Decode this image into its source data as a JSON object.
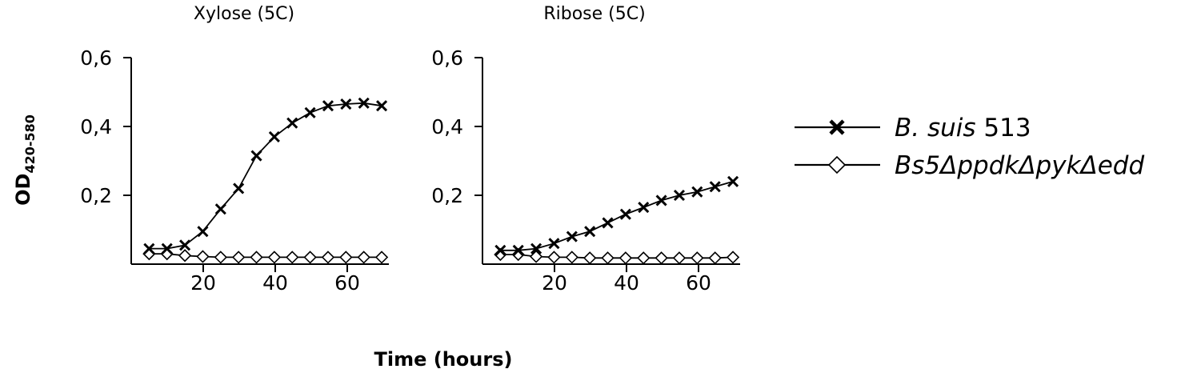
{
  "chart_data": [
    {
      "type": "line",
      "title": "Xylose (5C)",
      "xlim": [
        0,
        72
      ],
      "ylim": [
        0,
        0.6
      ],
      "xticks": [
        "20",
        "40",
        "60"
      ],
      "yticks": [
        "0,2",
        "0,4",
        "0,6"
      ],
      "series": [
        {
          "name": "B. suis 513",
          "marker": "x",
          "x": [
            5,
            10,
            15,
            20,
            25,
            30,
            35,
            40,
            45,
            50,
            55,
            60,
            65,
            70
          ],
          "y": [
            0.045,
            0.045,
            0.055,
            0.095,
            0.16,
            0.22,
            0.315,
            0.37,
            0.41,
            0.44,
            0.46,
            0.465,
            0.468,
            0.46
          ]
        },
        {
          "name": "Bs5ΔppdkΔpykΔedd",
          "marker": "diamond",
          "x": [
            5,
            10,
            15,
            20,
            25,
            30,
            35,
            40,
            45,
            50,
            55,
            60,
            65,
            70
          ],
          "y": [
            0.03,
            0.03,
            0.025,
            0.022,
            0.02,
            0.02,
            0.02,
            0.02,
            0.02,
            0.02,
            0.02,
            0.02,
            0.02,
            0.02
          ]
        }
      ]
    },
    {
      "type": "line",
      "title": "Ribose (5C)",
      "xlim": [
        0,
        72
      ],
      "ylim": [
        0,
        0.6
      ],
      "xticks": [
        "20",
        "40",
        "60"
      ],
      "yticks": [
        "0,2",
        "0,4",
        "0,6"
      ],
      "series": [
        {
          "name": "B. suis 513",
          "marker": "x",
          "x": [
            5,
            10,
            15,
            20,
            25,
            30,
            35,
            40,
            45,
            50,
            55,
            60,
            65,
            70
          ],
          "y": [
            0.04,
            0.04,
            0.045,
            0.06,
            0.08,
            0.095,
            0.12,
            0.145,
            0.165,
            0.185,
            0.2,
            0.21,
            0.225,
            0.24
          ]
        },
        {
          "name": "Bs5ΔppdkΔpykΔedd",
          "marker": "diamond",
          "x": [
            5,
            10,
            15,
            20,
            25,
            30,
            35,
            40,
            45,
            50,
            55,
            60,
            65,
            70
          ],
          "y": [
            0.028,
            0.028,
            0.022,
            0.02,
            0.02,
            0.018,
            0.018,
            0.018,
            0.018,
            0.018,
            0.018,
            0.018,
            0.018,
            0.02
          ]
        }
      ]
    }
  ],
  "shared": {
    "ylabel_main": "OD",
    "ylabel_sub": "420-580",
    "xlabel": "Time (hours)"
  },
  "legend": {
    "placement": "right",
    "entries": [
      {
        "marker": "x",
        "italic_part": "B. suis",
        "plain_part": " 513"
      },
      {
        "marker": "diamond",
        "italic_part": "Bs5ΔppdkΔpykΔedd",
        "plain_part": ""
      }
    ]
  }
}
